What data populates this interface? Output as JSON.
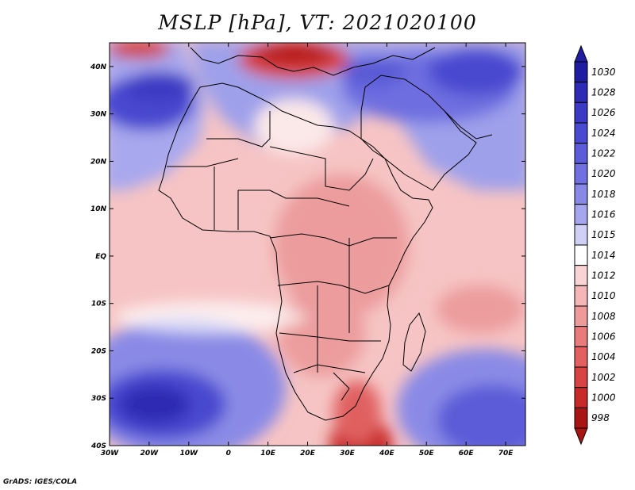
{
  "title": "MSLP [hPa], VT: 2021020100",
  "credit": "GrADS: IGES/COLA",
  "map": {
    "lat_ticks": [
      "40N",
      "30N",
      "20N",
      "10N",
      "EQ",
      "10S",
      "20S",
      "30S",
      "40S"
    ],
    "lon_ticks": [
      "30W",
      "20W",
      "10W",
      "0",
      "10E",
      "20E",
      "30E",
      "40E",
      "50E",
      "60E",
      "70E"
    ],
    "extent": {
      "lon": [
        -30,
        75
      ],
      "lat": [
        -40,
        45
      ]
    }
  },
  "colorbar": {
    "labels": [
      "1030",
      "1028",
      "1026",
      "1024",
      "1022",
      "1020",
      "1018",
      "1016",
      "1015",
      "1014",
      "1012",
      "1010",
      "1008",
      "1006",
      "1004",
      "1002",
      "1000",
      "998"
    ],
    "colors": [
      "#1e1ca0",
      "#2e2cb4",
      "#3c3ac4",
      "#4a4ad0",
      "#5c5cd8",
      "#7070e0",
      "#8888e6",
      "#a6a6ee",
      "#d0d0f6",
      "#ffffff",
      "#f8d4d4",
      "#f4b6b6",
      "#ee9a9a",
      "#e87c7c",
      "#e26060",
      "#d84444",
      "#c82a2a",
      "#a81414"
    ]
  }
}
